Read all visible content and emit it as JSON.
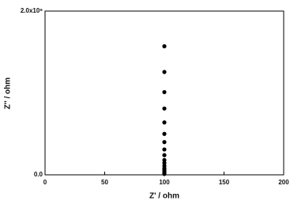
{
  "chart_data": {
    "type": "scatter",
    "x_label": "Z' / ohm",
    "y_label": "Z'' / ohm",
    "color": "#000000",
    "x": [
      100,
      100,
      100,
      100,
      100,
      100,
      100,
      100,
      100,
      100,
      100,
      100,
      100,
      100,
      100,
      100,
      100
    ],
    "values": [
      1570000,
      1256000,
      1010000,
      810000,
      640000,
      500000,
      400000,
      310000,
      240000,
      180000,
      145000,
      110000,
      80000,
      60000,
      40000,
      20000,
      10000
    ],
    "xlim": [
      0,
      200
    ],
    "xticks": [
      0,
      50,
      100,
      150,
      200
    ],
    "ylim": [
      0,
      2000000
    ],
    "yticks": [
      {
        "value": 0,
        "label": "0.0"
      },
      {
        "value": 2000000,
        "label": "2.0x10⁶"
      }
    ]
  }
}
